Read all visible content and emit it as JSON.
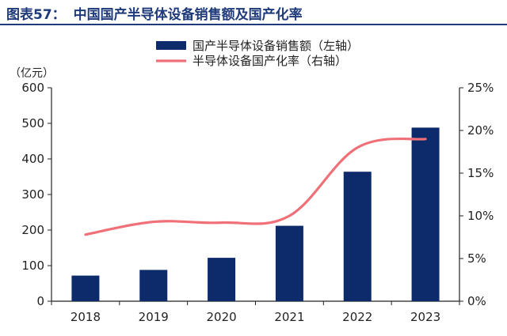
{
  "header": {
    "figure_label": "图表57：",
    "title": "中国国产半导体设备销售额及国产化率"
  },
  "chart_data": {
    "type": "bar",
    "categories": [
      "2018",
      "2019",
      "2020",
      "2021",
      "2022",
      "2023"
    ],
    "series": [
      {
        "name": "国产半导体设备销售额（左轴）",
        "type": "bar",
        "axis": "left",
        "values": [
          72,
          88,
          122,
          212,
          364,
          488
        ]
      },
      {
        "name": "半导体设备国产化率（右轴）",
        "type": "line",
        "axis": "right",
        "values": [
          0.078,
          0.093,
          0.092,
          0.1,
          0.18,
          0.19
        ]
      }
    ],
    "y_left": {
      "unit_label": "（亿元）",
      "ylim": [
        0,
        600
      ],
      "ticks": [
        "0",
        "100",
        "200",
        "300",
        "400",
        "500",
        "600"
      ]
    },
    "y_right": {
      "ylim": [
        0,
        0.25
      ],
      "ticks": [
        "0%",
        "5%",
        "10%",
        "15%",
        "20%",
        "25%"
      ]
    },
    "legend_position": "top-center",
    "grid": false,
    "colors": {
      "bar": "#0d2a6b",
      "line": "#f07078",
      "axis": "#222222",
      "title": "#1f3a7a"
    }
  }
}
